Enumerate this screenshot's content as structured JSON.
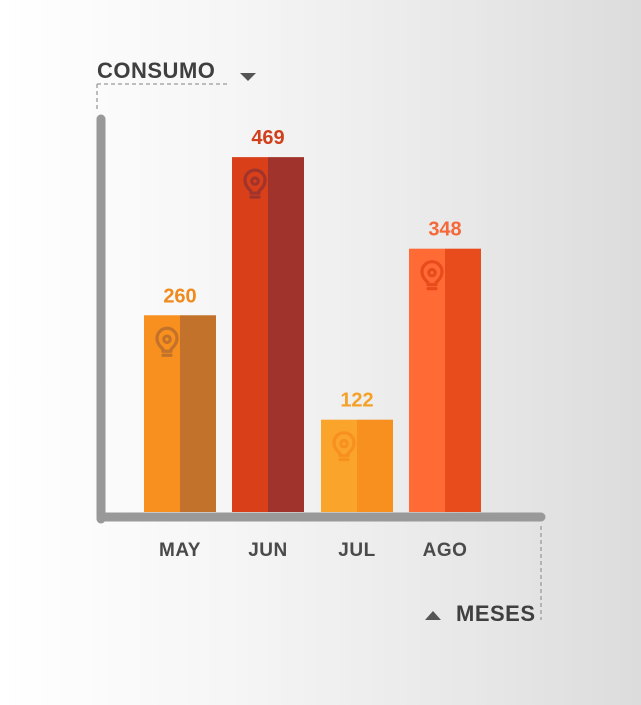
{
  "chart_data": {
    "type": "bar",
    "categories": [
      "MAY",
      "JUN",
      "JUL",
      "AGO"
    ],
    "values": [
      260,
      469,
      122,
      348
    ],
    "ylabel": "CONSUMO",
    "xlabel": "MESES",
    "ylim": [
      0,
      600
    ],
    "grid": false,
    "legend": "none",
    "bar_icon": "lightbulb-icon",
    "colors": {
      "axis": "#999999",
      "axis_title": "#3f3f3f",
      "tick_label": "#4a4a4a",
      "bar_front": [
        "#f7901e",
        "#d9401a",
        "#fba42b",
        "#ff6a35"
      ],
      "bar_side": [
        "#c2722a",
        "#a0342c",
        "#f7901e",
        "#e84b1c"
      ],
      "label": [
        "#f08a1c",
        "#d0401c",
        "#f5a128",
        "#f5683a"
      ]
    }
  }
}
